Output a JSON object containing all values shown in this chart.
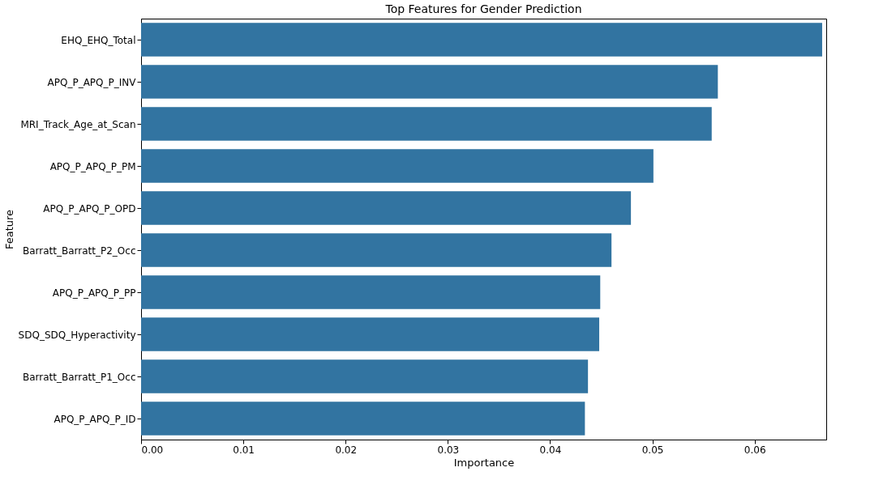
{
  "chart_data": {
    "type": "bar",
    "orientation": "horizontal",
    "title": "Top Features for Gender Prediction",
    "xlabel": "Importance",
    "ylabel": "Feature",
    "categories": [
      "EHQ_EHQ_Total",
      "APQ_P_APQ_P_INV",
      "MRI_Track_Age_at_Scan",
      "APQ_P_APQ_P_PM",
      "APQ_P_APQ_P_OPD",
      "Barratt_Barratt_P2_Occ",
      "APQ_P_APQ_P_PP",
      "SDQ_SDQ_Hyperactivity",
      "Barratt_Barratt_P1_Occ",
      "APQ_P_APQ_P_ID"
    ],
    "values": [
      0.0666,
      0.0564,
      0.0558,
      0.0501,
      0.0479,
      0.046,
      0.0449,
      0.0448,
      0.0437,
      0.0434
    ],
    "color": "#3274a1",
    "xlim": [
      0,
      0.067
    ],
    "xticks": [
      {
        "value": 0,
        "label": "0.00"
      },
      0.01,
      0.02,
      0.03,
      0.04,
      0.05,
      0.06
    ],
    "grid": false
  }
}
